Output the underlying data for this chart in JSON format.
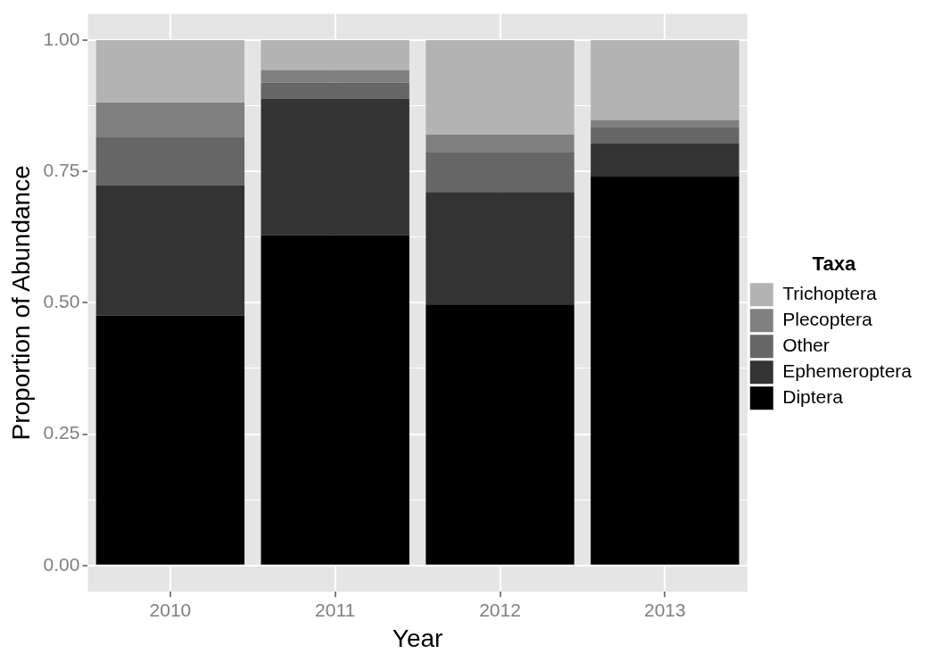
{
  "chart_data": {
    "type": "bar",
    "stacked": true,
    "xlabel": "Year",
    "ylabel": "Proportion of Abundance",
    "legend_title": "Taxa",
    "legend": "right",
    "grid": true,
    "categories": [
      "2010",
      "2011",
      "2012",
      "2013"
    ],
    "series": [
      {
        "name": "Diptera",
        "color": "#000000",
        "values": [
          0.476,
          0.629,
          0.497,
          0.74
        ]
      },
      {
        "name": "Ephemeroptera",
        "color": "#333333",
        "values": [
          0.247,
          0.259,
          0.214,
          0.063
        ]
      },
      {
        "name": "Other",
        "color": "#666666",
        "values": [
          0.093,
          0.031,
          0.075,
          0.032
        ]
      },
      {
        "name": "Plecoptera",
        "color": "#808080",
        "values": [
          0.065,
          0.024,
          0.034,
          0.013
        ]
      },
      {
        "name": "Trichoptera",
        "color": "#b3b3b3",
        "values": [
          0.119,
          0.057,
          0.18,
          0.152
        ]
      }
    ],
    "ylim": [
      -0.05,
      1.05
    ],
    "yticks": [
      {
        "value": 0,
        "label": "0.00"
      },
      {
        "value": 0.125,
        "label": null
      },
      {
        "value": 0.25,
        "label": "0.25"
      },
      {
        "value": 0.375,
        "label": null
      },
      {
        "value": 0.5,
        "label": "0.50"
      },
      {
        "value": 0.625,
        "label": null
      },
      {
        "value": 0.75,
        "label": "0.75"
      },
      {
        "value": 0.875,
        "label": null
      },
      {
        "value": 1,
        "label": "1.00"
      }
    ]
  }
}
